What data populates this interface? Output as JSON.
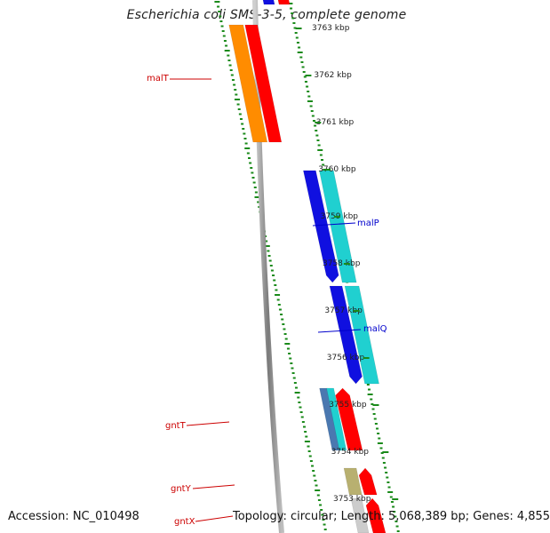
{
  "header": {
    "title": "Escherichia coli SMS-3-5, complete genome"
  },
  "footer": {
    "accession": "Accession: NC_010498",
    "summary": "Topology: circular; Length: 5,068,389 bp; Genes: 4,855"
  },
  "ticks": [
    {
      "label": "3763 kbp"
    },
    {
      "label": "3762 kbp"
    },
    {
      "label": "3761 kbp"
    },
    {
      "label": "3760 kbp"
    },
    {
      "label": "3759 kbp"
    },
    {
      "label": "3758 kbp"
    },
    {
      "label": "3757 kbp"
    },
    {
      "label": "3756 kbp"
    },
    {
      "label": "3755 kbp"
    },
    {
      "label": "3754 kbp"
    },
    {
      "label": "3753 kbp"
    }
  ],
  "genes": [
    {
      "name": "malT",
      "color": "#cc0000"
    },
    {
      "name": "malP",
      "color": "#0000cc"
    },
    {
      "name": "malQ",
      "color": "#0000cc"
    },
    {
      "name": "gntT",
      "color": "#cc0000"
    },
    {
      "name": "gntY",
      "color": "#cc0000"
    },
    {
      "name": "gntX",
      "color": "#cc0000"
    }
  ],
  "colors": {
    "orange": "#ff8c00",
    "red": "#ff0000",
    "blue": "#1010e0",
    "cyan": "#20d0d0",
    "steel": "#4a78b0",
    "khaki": "#b8b070",
    "backbone": "#888888",
    "dots": "#1a8a1a"
  }
}
